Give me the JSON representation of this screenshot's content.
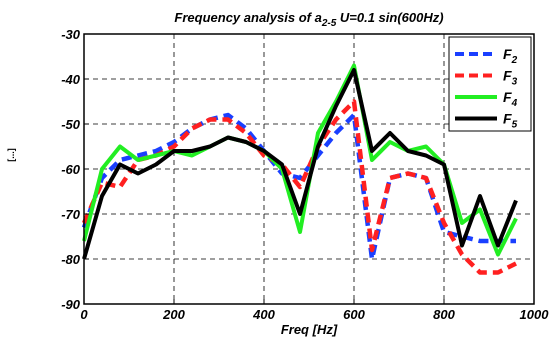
{
  "chart_data": {
    "type": "line",
    "title": "Frequency analysis of a",
    "title_subscript": "2-5",
    "title_rest": " U=0.1 sin(600Hz)",
    "xlabel": "Freq [Hz]",
    "ylabel_partial": "[...]",
    "xlim": [
      0,
      1000
    ],
    "ylim": [
      -90,
      -30
    ],
    "x_ticks": [
      "0",
      "200",
      "400",
      "600",
      "800",
      "1000"
    ],
    "y_ticks": [
      "-30",
      "-40",
      "-50",
      "-60",
      "-70",
      "-80",
      "-90"
    ],
    "grid": true,
    "legend_position": "top-right",
    "series": [
      {
        "name": "F2",
        "label_main": "F",
        "label_sub": "2",
        "color": "#1a3fff",
        "style": "dashed",
        "x": [
          0,
          40,
          80,
          120,
          160,
          200,
          240,
          280,
          320,
          360,
          400,
          440,
          480,
          520,
          560,
          600,
          640,
          680,
          720,
          760,
          800,
          840,
          880,
          920,
          960
        ],
        "y": [
          -73,
          -62,
          -58,
          -57,
          -56,
          -54,
          -51,
          -49,
          -48,
          -51,
          -56,
          -61,
          -62,
          -57,
          -52,
          -48,
          -80,
          -62,
          -61,
          -62,
          -74,
          -75,
          -76,
          -76,
          -76
        ]
      },
      {
        "name": "F3",
        "label_main": "F",
        "label_sub": "3",
        "color": "#ff2020",
        "style": "dashed",
        "x": [
          0,
          40,
          80,
          120,
          160,
          200,
          240,
          280,
          320,
          360,
          400,
          440,
          480,
          520,
          560,
          600,
          640,
          680,
          720,
          760,
          800,
          840,
          880,
          920,
          960
        ],
        "y": [
          -72,
          -63,
          -64,
          -58,
          -57,
          -55,
          -51,
          -49,
          -49,
          -52,
          -57,
          -59,
          -64,
          -55,
          -49,
          -45,
          -78,
          -62,
          -61,
          -62,
          -72,
          -79,
          -83,
          -83,
          -81
        ]
      },
      {
        "name": "F4",
        "label_main": "F",
        "label_sub": "4",
        "color": "#22ee22",
        "style": "solid",
        "x": [
          0,
          40,
          80,
          120,
          160,
          200,
          240,
          280,
          320,
          360,
          400,
          440,
          480,
          520,
          560,
          600,
          640,
          680,
          720,
          760,
          800,
          840,
          880,
          920,
          960
        ],
        "y": [
          -76,
          -60,
          -55,
          -58,
          -57,
          -56,
          -57,
          -55,
          -53,
          -54,
          -56,
          -60,
          -74,
          -52,
          -45,
          -37,
          -58,
          -54,
          -56,
          -55,
          -59,
          -72,
          -69,
          -79,
          -71
        ]
      },
      {
        "name": "F5",
        "label_main": "F",
        "label_sub": "5",
        "color": "#000000",
        "style": "solid",
        "x": [
          0,
          40,
          80,
          120,
          160,
          200,
          240,
          280,
          320,
          360,
          400,
          440,
          480,
          520,
          560,
          600,
          640,
          680,
          720,
          760,
          800,
          840,
          880,
          920,
          960
        ],
        "y": [
          -80,
          -66,
          -59,
          -61,
          -59,
          -56,
          -56,
          -55,
          -53,
          -54,
          -56,
          -59,
          -70,
          -55,
          -46,
          -38,
          -56,
          -52,
          -56,
          -57,
          -59,
          -77,
          -66,
          -77,
          -67
        ]
      }
    ]
  }
}
